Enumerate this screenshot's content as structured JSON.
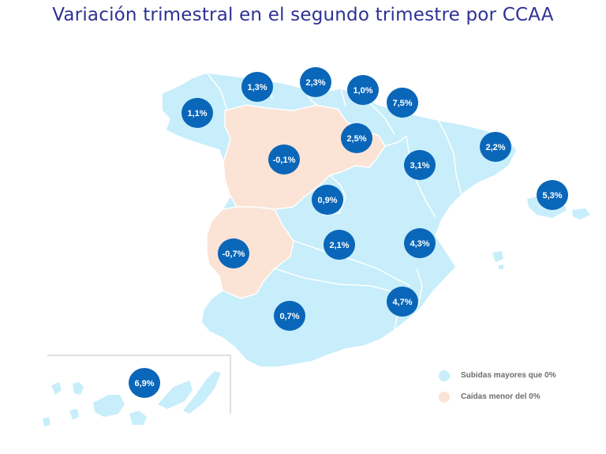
{
  "title": "Variación trimestral en el segundo trimestre por CCAA",
  "colors": {
    "increase": "#c7eefa",
    "decrease": "#fbe3d6",
    "border": "#ffffff",
    "bubble": "#0a66b8",
    "bubble_text": "#ffffff",
    "title": "#2e3192"
  },
  "regions": [
    {
      "name": "Galicia",
      "value": "1,1%",
      "trend": "up"
    },
    {
      "name": "Asturias",
      "value": "1,3%",
      "trend": "up"
    },
    {
      "name": "Cantabria",
      "value": "2,3%",
      "trend": "up"
    },
    {
      "name": "País Vasco",
      "value": "1,0%",
      "trend": "up"
    },
    {
      "name": "Navarra",
      "value": "7,5%",
      "trend": "up"
    },
    {
      "name": "La Rioja",
      "value": "2,5%",
      "trend": "up"
    },
    {
      "name": "Cataluña",
      "value": "2,2%",
      "trend": "up"
    },
    {
      "name": "Aragón",
      "value": "3,1%",
      "trend": "up"
    },
    {
      "name": "Baleares",
      "value": "5,3%",
      "trend": "up"
    },
    {
      "name": "Castilla y León",
      "value": "-0,1%",
      "trend": "down"
    },
    {
      "name": "Madrid",
      "value": "0,9%",
      "trend": "up"
    },
    {
      "name": "Extremadura",
      "value": "-0,7%",
      "trend": "down"
    },
    {
      "name": "Castilla-La Mancha",
      "value": "2,1%",
      "trend": "up"
    },
    {
      "name": "Comunidad Valenciana",
      "value": "4,3%",
      "trend": "up"
    },
    {
      "name": "Murcia",
      "value": "4,7%",
      "trend": "up"
    },
    {
      "name": "Andalucía",
      "value": "0,7%",
      "trend": "up"
    },
    {
      "name": "Canarias",
      "value": "6,9%",
      "trend": "up"
    }
  ],
  "legend": [
    {
      "label": "Subidas mayores que 0%",
      "color": "#c7eefa"
    },
    {
      "label": "Caídas menor del 0%",
      "color": "#fbe3d6"
    }
  ]
}
